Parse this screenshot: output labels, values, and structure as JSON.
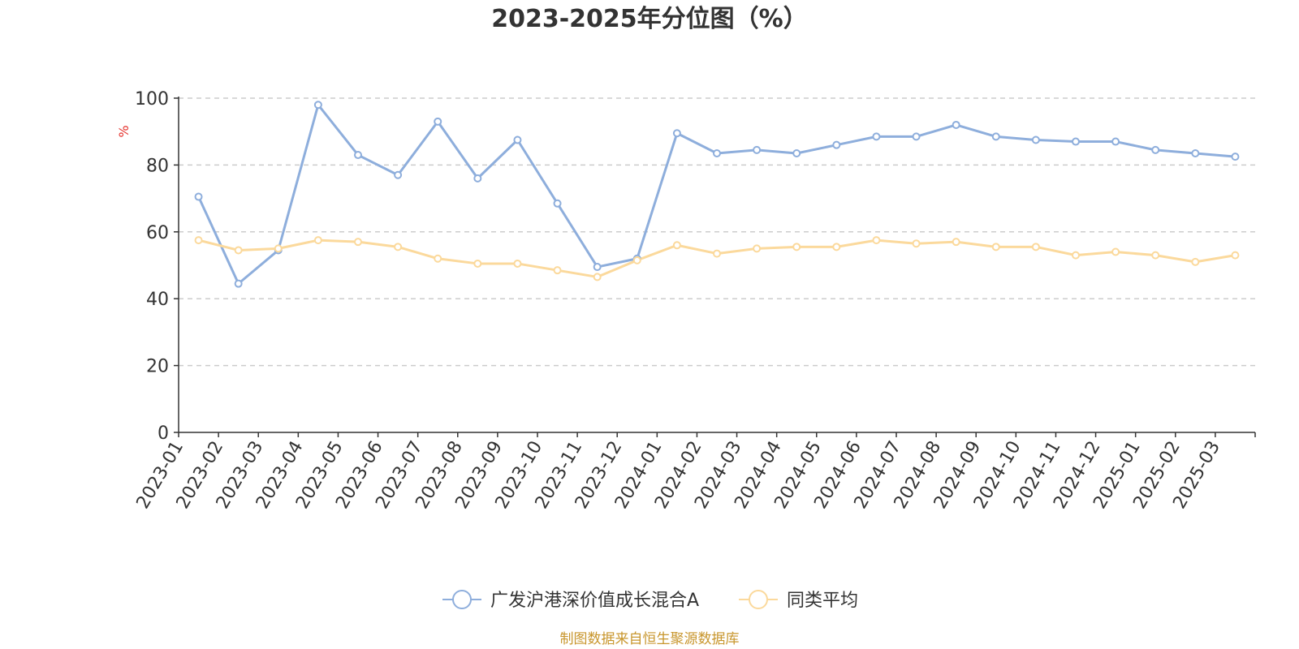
{
  "chart_data": {
    "type": "line",
    "title": "2023-2025年分位图（%）",
    "ylabel": "%",
    "ylim": [
      0,
      100
    ],
    "yticks": [
      0,
      20,
      40,
      60,
      80,
      100
    ],
    "grid": true,
    "legend_position": "bottom-center",
    "categories": [
      "2023-01",
      "2023-02",
      "2023-03",
      "2023-04",
      "2023-05",
      "2023-06",
      "2023-07",
      "2023-08",
      "2023-09",
      "2023-10",
      "2023-11",
      "2023-12",
      "2024-01",
      "2024-02",
      "2024-03",
      "2024-04",
      "2024-05",
      "2024-06",
      "2024-07",
      "2024-08",
      "2024-09",
      "2024-10",
      "2024-11",
      "2024-12",
      "2025-01",
      "2025-02",
      "2025-03"
    ],
    "series": [
      {
        "name": "广发沪港深价值成长混合A",
        "color": "#8eaedc",
        "values": [
          70.5,
          44.5,
          54.5,
          98,
          83,
          77,
          93,
          76,
          87.5,
          68.5,
          49.5,
          52,
          89.5,
          83.5,
          84.5,
          83.5,
          86,
          88.5,
          88.5,
          92,
          88.5,
          87.5,
          87,
          87,
          84.5,
          83.5,
          82.5
        ]
      },
      {
        "name": "同类平均",
        "color": "#fbd99c",
        "values": [
          57.5,
          54.5,
          55,
          57.5,
          57,
          55.5,
          52,
          50.5,
          50.5,
          48.5,
          46.5,
          51.5,
          56,
          53.5,
          55,
          55.5,
          55.5,
          57.5,
          56.5,
          57,
          55.5,
          55.5,
          53,
          54,
          53,
          51,
          53
        ]
      }
    ]
  },
  "source": "制图数据来自恒生聚源数据库"
}
